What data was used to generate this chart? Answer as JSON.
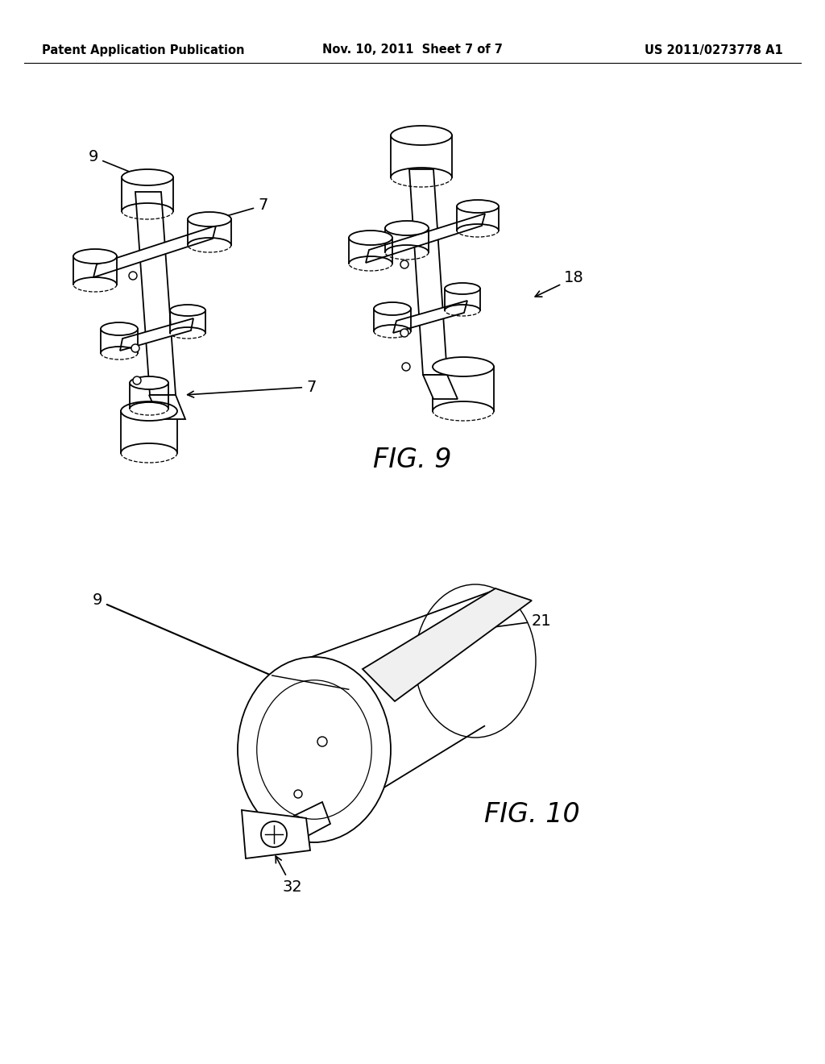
{
  "background_color": "#ffffff",
  "header_left": "Patent Application Publication",
  "header_center": "Nov. 10, 2011  Sheet 7 of 7",
  "header_right": "US 2011/0273778 A1",
  "header_fontsize": 10.5,
  "fig9_label": "FIG. 9",
  "fig10_label": "FIG. 10",
  "fig_label_fontsize": 24,
  "annotation_fontsize": 14,
  "line_color": "#000000",
  "line_width": 1.3
}
